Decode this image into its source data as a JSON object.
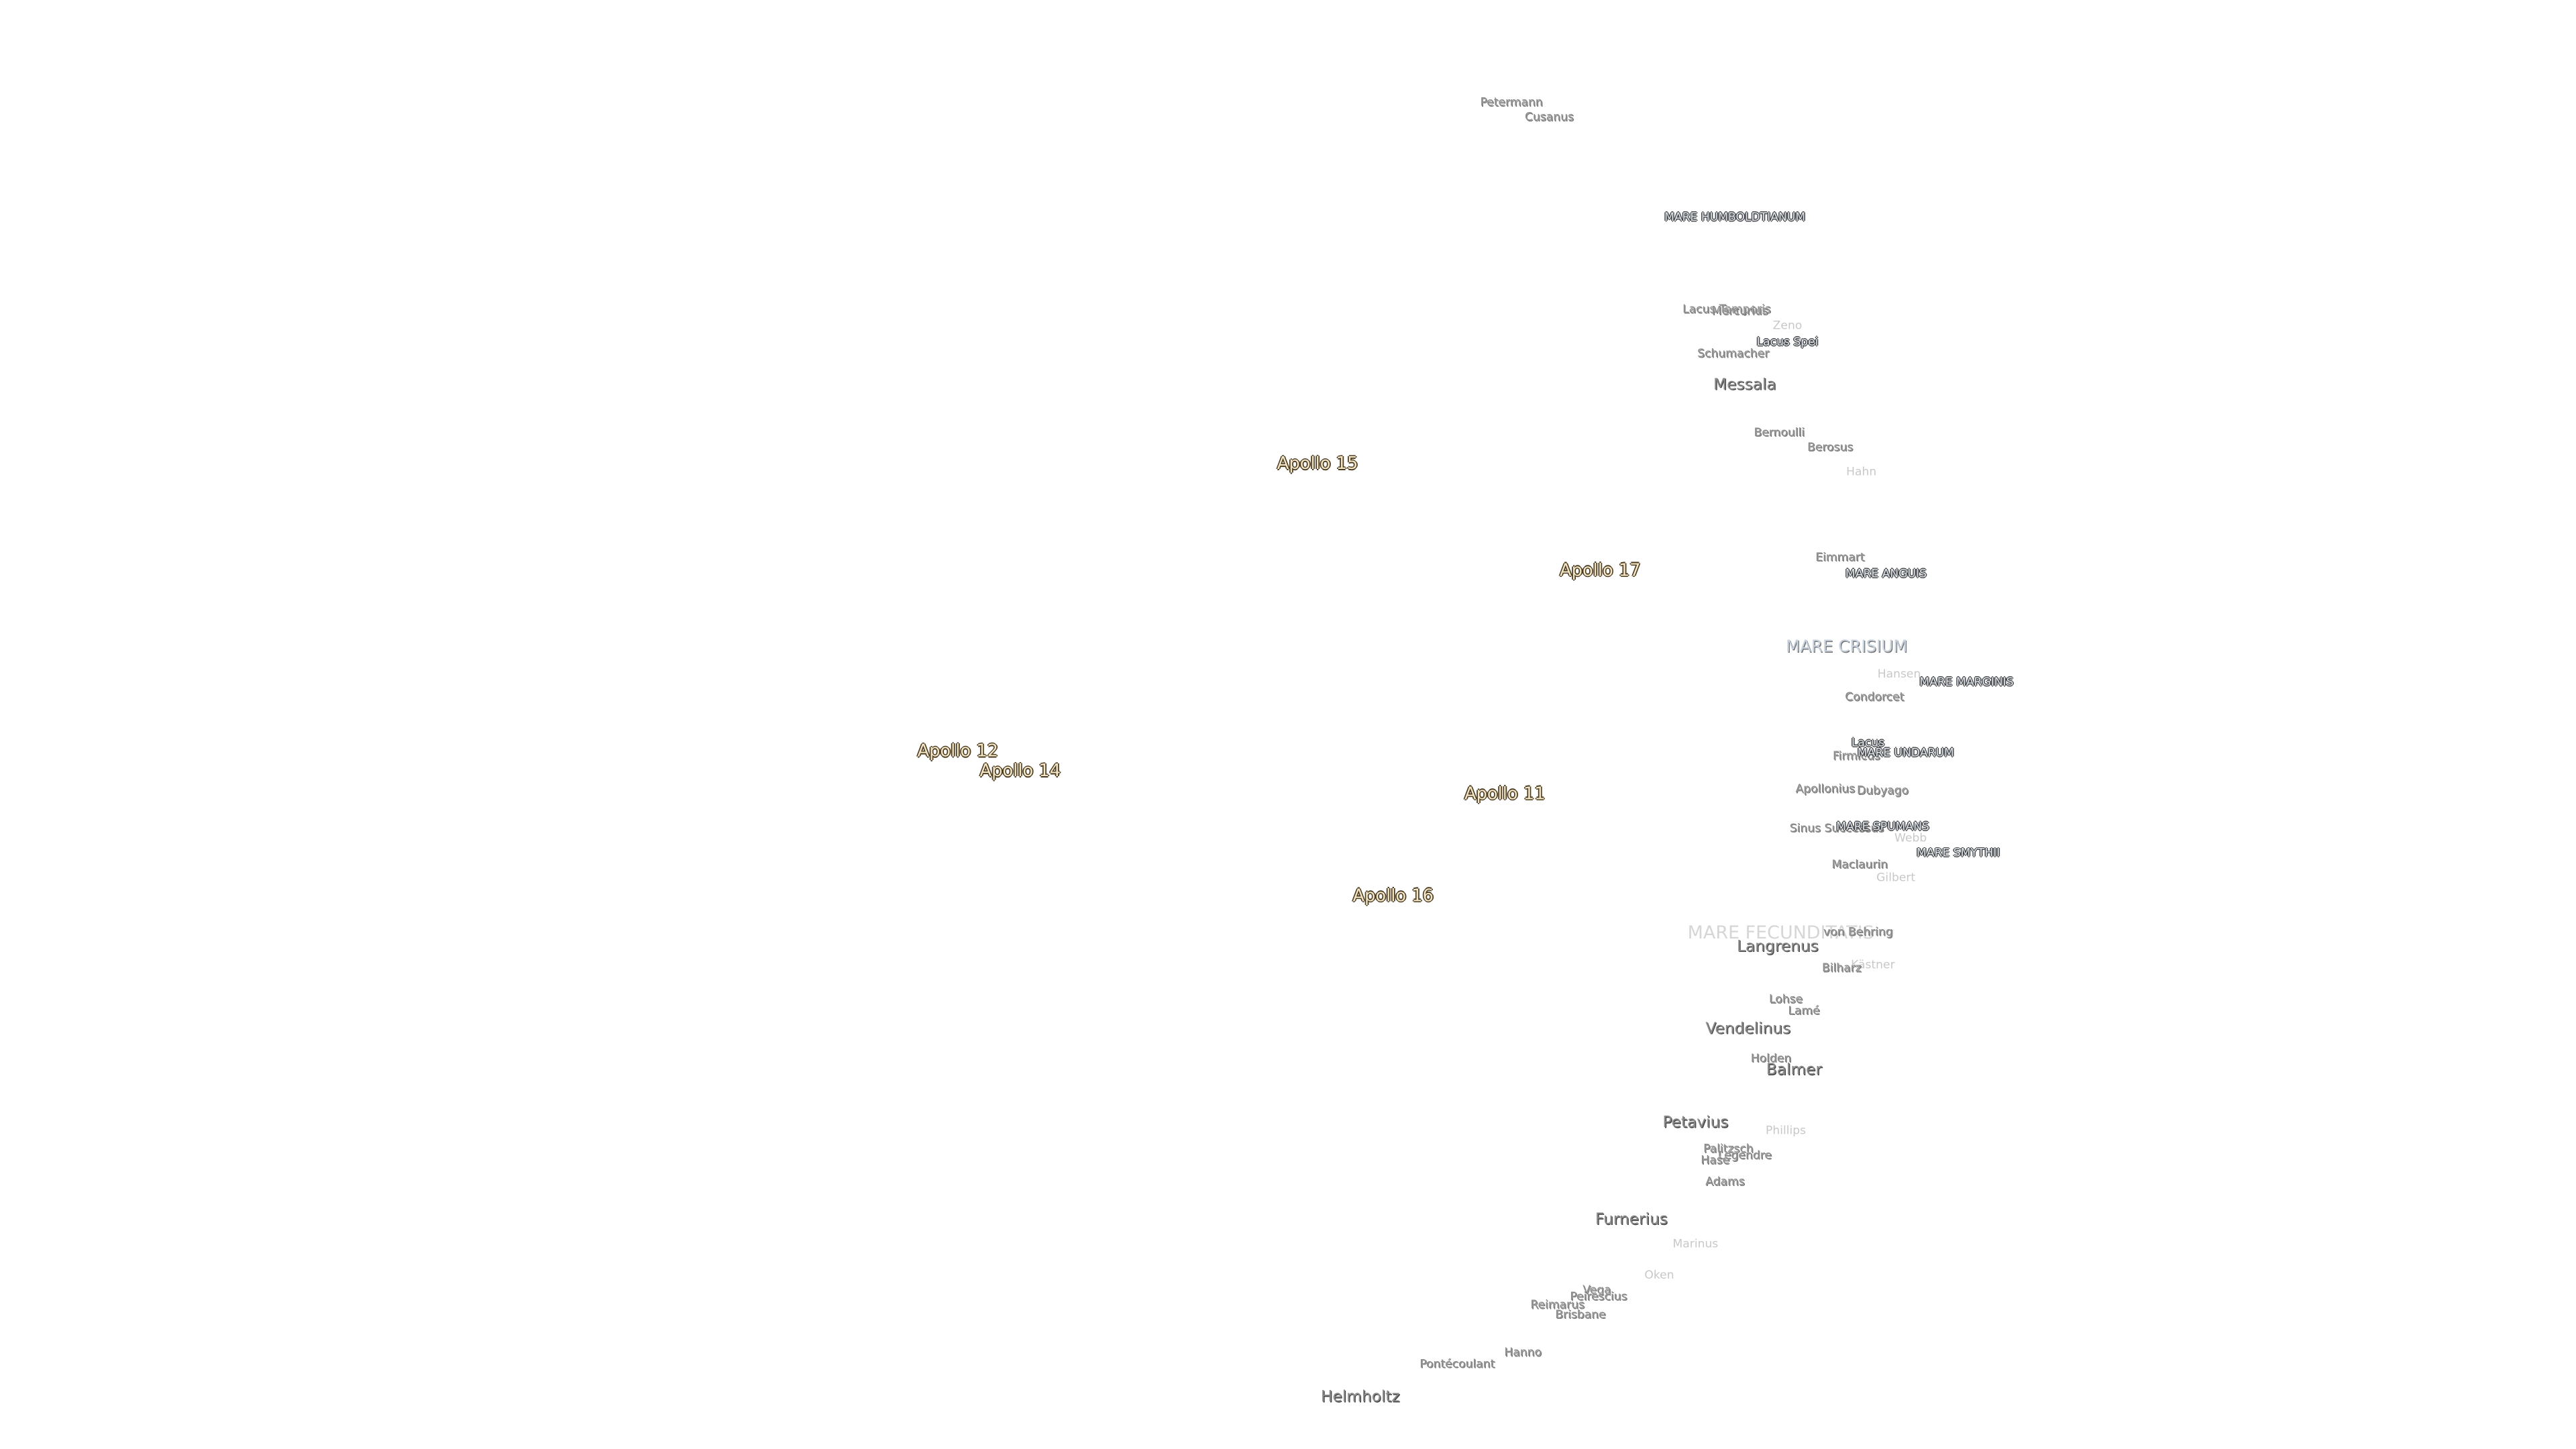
{
  "labels": [
    "Petermann",
    "Cusanus",
    "MARE HUMBOLDTIANUM",
    "Lacus Temporis",
    "Mercurius",
    "Zeno",
    "Lacus Spei",
    "Schumacher",
    "Messala",
    "Bernoulli",
    "Berosus",
    "Hahn",
    "Apollo 15",
    "Apollo 17",
    "Eimmart",
    "MARE ANGUIS",
    "MARE CRISIUM",
    "Hansen",
    "MARE MARGINIS",
    "Condorcet",
    "Lacus",
    "Firmicus",
    "MARE UNDARUM",
    "Apollo 12",
    "Apollo 14",
    "Apollo 11",
    "Apollonius",
    "Dubyago",
    "Sinus Successus",
    "MARE SPUMANS",
    "Webb",
    "MARE SMYTHII",
    "Maclaurin",
    "Gilbert",
    "Apollo 16",
    "MARE FECUNDITATIS",
    "Langrenus",
    "von Behring",
    "Kästner",
    "Bilharz",
    "Lohse",
    "Lamé",
    "Vendelinus",
    "Holden",
    "Balmer",
    "Petavius",
    "Phillips",
    "Palitzsch",
    "Legendre",
    "Hase",
    "Adams",
    "Furnerius",
    "Marinus",
    "Oken",
    "Vega",
    "Peirescius",
    "Reimarus",
    "Brisbane",
    "Hanno",
    "Pontécoulant",
    "Helmholtz"
  ]
}
